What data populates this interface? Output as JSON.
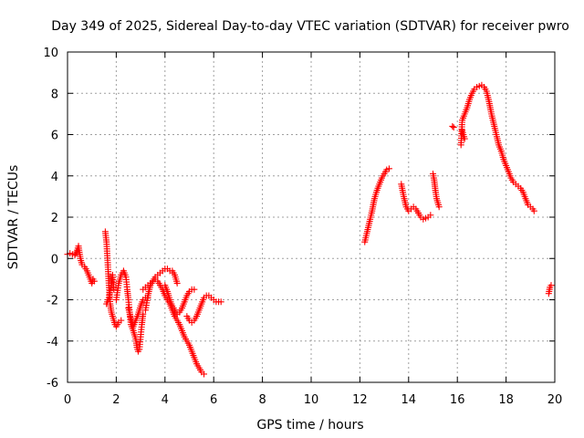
{
  "chart_data": {
    "type": "scatter",
    "title": "Day 349 of 2025, Sidereal Day-to-day VTEC variation (SDTVAR) for receiver pwro",
    "xlabel": "GPS time / hours",
    "ylabel": "SDTVAR / TECUs",
    "xlim": [
      0,
      20
    ],
    "ylim": [
      -6,
      10
    ],
    "x_ticks": [
      0,
      2,
      4,
      6,
      8,
      10,
      12,
      14,
      16,
      18,
      20
    ],
    "y_ticks": [
      -6,
      -4,
      -2,
      0,
      2,
      4,
      6,
      8,
      10
    ],
    "grid": true,
    "marker": "+",
    "series_color": "#ff0000",
    "series": [
      {
        "name": "SDTVAR",
        "segments": [
          {
            "x": [
              0.0,
              0.1,
              0.2,
              0.3,
              0.4,
              0.45,
              0.5,
              0.55,
              0.6,
              0.7,
              0.8,
              0.9,
              1.0,
              1.05,
              1.1
            ],
            "y": [
              0.2,
              0.25,
              0.2,
              0.15,
              0.4,
              0.6,
              0.2,
              -0.1,
              -0.3,
              -0.4,
              -0.6,
              -0.9,
              -1.2,
              -1.0,
              -1.1
            ]
          },
          {
            "x": [
              1.55,
              1.6,
              1.65,
              1.7,
              1.75,
              1.8,
              1.85,
              1.9,
              1.95,
              2.0,
              2.05,
              2.1,
              2.2
            ],
            "y": [
              1.3,
              0.8,
              -0.2,
              -1.3,
              -2.2,
              -2.6,
              -2.8,
              -3.0,
              -3.2,
              -3.3,
              -3.2,
              -3.1,
              -3.0
            ]
          },
          {
            "x": [
              1.6,
              1.7,
              1.8,
              1.85,
              1.9
            ],
            "y": [
              -2.2,
              -1.9,
              -1.2,
              -0.8,
              -1.5
            ]
          },
          {
            "x": [
              2.0,
              2.1,
              2.2,
              2.3,
              2.4,
              2.45,
              2.5,
              2.55,
              2.6,
              2.7,
              2.8,
              2.85,
              2.9,
              2.95,
              3.0,
              3.05,
              3.1
            ],
            "y": [
              -2.0,
              -1.2,
              -0.8,
              -0.6,
              -0.9,
              -1.5,
              -2.0,
              -2.6,
              -3.2,
              -3.5,
              -3.9,
              -4.3,
              -4.5,
              -4.4,
              -3.8,
              -3.2,
              -2.7
            ]
          },
          {
            "x": [
              2.5,
              2.6,
              2.7,
              2.8,
              2.9,
              3.0,
              3.1,
              3.2,
              3.3
            ],
            "y": [
              -2.4,
              -2.9,
              -3.3,
              -3.0,
              -2.7,
              -2.3,
              -2.0,
              -1.9,
              -1.9
            ]
          },
          {
            "x": [
              3.2,
              3.3,
              3.4,
              3.5,
              3.6,
              3.7,
              3.8,
              3.9,
              4.0,
              4.1,
              4.2,
              4.3,
              4.4,
              4.5
            ],
            "y": [
              -2.5,
              -1.8,
              -1.3,
              -1.1,
              -0.9,
              -0.8,
              -0.7,
              -0.6,
              -0.5,
              -0.5,
              -0.6,
              -0.6,
              -0.8,
              -1.2
            ]
          },
          {
            "x": [
              3.1,
              3.2,
              3.3,
              3.4,
              3.5,
              3.6,
              3.7,
              3.8,
              3.9,
              4.0,
              4.1,
              4.2,
              4.3,
              4.4,
              4.5,
              4.6,
              4.7,
              4.8,
              4.9,
              5.0,
              5.1,
              5.2,
              5.3,
              5.4,
              5.5,
              5.6
            ],
            "y": [
              -1.5,
              -1.4,
              -1.3,
              -1.2,
              -1.1,
              -1.0,
              -1.1,
              -1.3,
              -1.5,
              -1.8,
              -2.0,
              -2.2,
              -2.5,
              -2.8,
              -3.0,
              -3.2,
              -3.5,
              -3.8,
              -4.0,
              -4.2,
              -4.5,
              -4.8,
              -5.1,
              -5.3,
              -5.5,
              -5.6
            ]
          },
          {
            "x": [
              4.0,
              4.1,
              4.2,
              4.3,
              4.4,
              4.5,
              4.6,
              4.7,
              4.8,
              4.9,
              5.0,
              5.1,
              5.2
            ],
            "y": [
              -1.3,
              -1.6,
              -2.0,
              -2.3,
              -2.5,
              -2.7,
              -2.6,
              -2.4,
              -2.1,
              -1.8,
              -1.6,
              -1.5,
              -1.5
            ]
          },
          {
            "x": [
              4.9,
              5.0,
              5.1,
              5.2,
              5.3,
              5.4,
              5.5,
              5.6,
              5.7,
              5.8,
              5.9,
              6.0,
              6.1,
              6.2,
              6.3
            ],
            "y": [
              -2.8,
              -3.0,
              -3.1,
              -3.0,
              -2.8,
              -2.5,
              -2.2,
              -1.9,
              -1.8,
              -1.8,
              -1.9,
              -2.0,
              -2.1,
              -2.1,
              -2.1
            ]
          },
          {
            "x": [
              12.2,
              12.3,
              12.4,
              12.5,
              12.6,
              12.7,
              12.8,
              12.9,
              13.0,
              13.1,
              13.2
            ],
            "y": [
              0.8,
              1.3,
              1.8,
              2.3,
              2.9,
              3.3,
              3.6,
              3.9,
              4.1,
              4.3,
              4.35
            ]
          },
          {
            "x": [
              13.7,
              13.8,
              13.9,
              14.0,
              14.1,
              14.2,
              14.3,
              14.4,
              14.5,
              14.6,
              14.7,
              14.8,
              14.9
            ],
            "y": [
              3.6,
              3.0,
              2.5,
              2.3,
              2.4,
              2.5,
              2.4,
              2.2,
              2.0,
              1.9,
              1.95,
              2.0,
              2.1
            ]
          },
          {
            "x": [
              15.0,
              15.05,
              15.1,
              15.15,
              15.2,
              15.25
            ],
            "y": [
              4.1,
              3.8,
              3.3,
              2.9,
              2.7,
              2.5
            ]
          },
          {
            "x": [
              15.8,
              15.85
            ],
            "y": [
              6.4,
              6.35
            ]
          },
          {
            "x": [
              16.15,
              16.2,
              16.3,
              16.4,
              16.5,
              16.6,
              16.7,
              16.8,
              16.9,
              17.0,
              17.1,
              17.2,
              17.3,
              17.4,
              17.5,
              17.6,
              17.7,
              17.8,
              17.9,
              18.0,
              18.1,
              18.2,
              18.3,
              18.4,
              18.5,
              18.6,
              18.7,
              18.8,
              18.9,
              19.0,
              19.1,
              19.15
            ],
            "y": [
              5.5,
              6.7,
              7.0,
              7.3,
              7.7,
              8.0,
              8.2,
              8.3,
              8.35,
              8.4,
              8.3,
              8.1,
              7.6,
              7.0,
              6.5,
              6.0,
              5.5,
              5.2,
              4.8,
              4.5,
              4.2,
              3.9,
              3.7,
              3.6,
              3.5,
              3.4,
              3.2,
              2.9,
              2.6,
              2.5,
              2.4,
              2.3
            ]
          },
          {
            "x": [
              16.2,
              16.25,
              16.3
            ],
            "y": [
              6.2,
              6.0,
              5.8
            ]
          },
          {
            "x": [
              19.75,
              19.8,
              19.85
            ],
            "y": [
              -1.7,
              -1.4,
              -1.3
            ]
          }
        ]
      }
    ]
  }
}
